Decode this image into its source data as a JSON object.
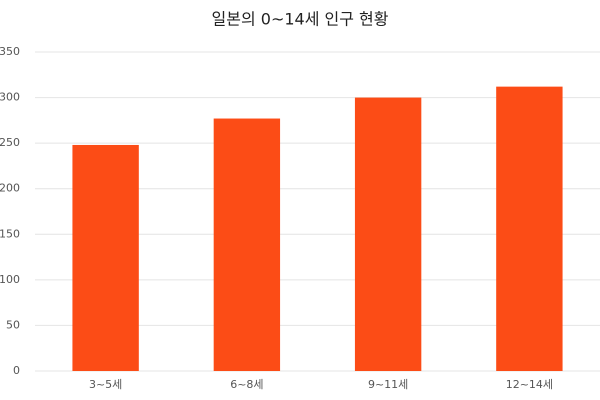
{
  "chart_data": {
    "type": "bar",
    "title": "일본의 0~14세 인구 현황",
    "categories": [
      "3~5세",
      "6~8세",
      "9~11세",
      "12~14세"
    ],
    "values": [
      248,
      277,
      300,
      312
    ],
    "color": "#fc4c16",
    "ylim": [
      0,
      350
    ],
    "yticks": [
      0,
      50,
      100,
      150,
      200,
      250,
      300,
      350
    ],
    "grid": true
  }
}
